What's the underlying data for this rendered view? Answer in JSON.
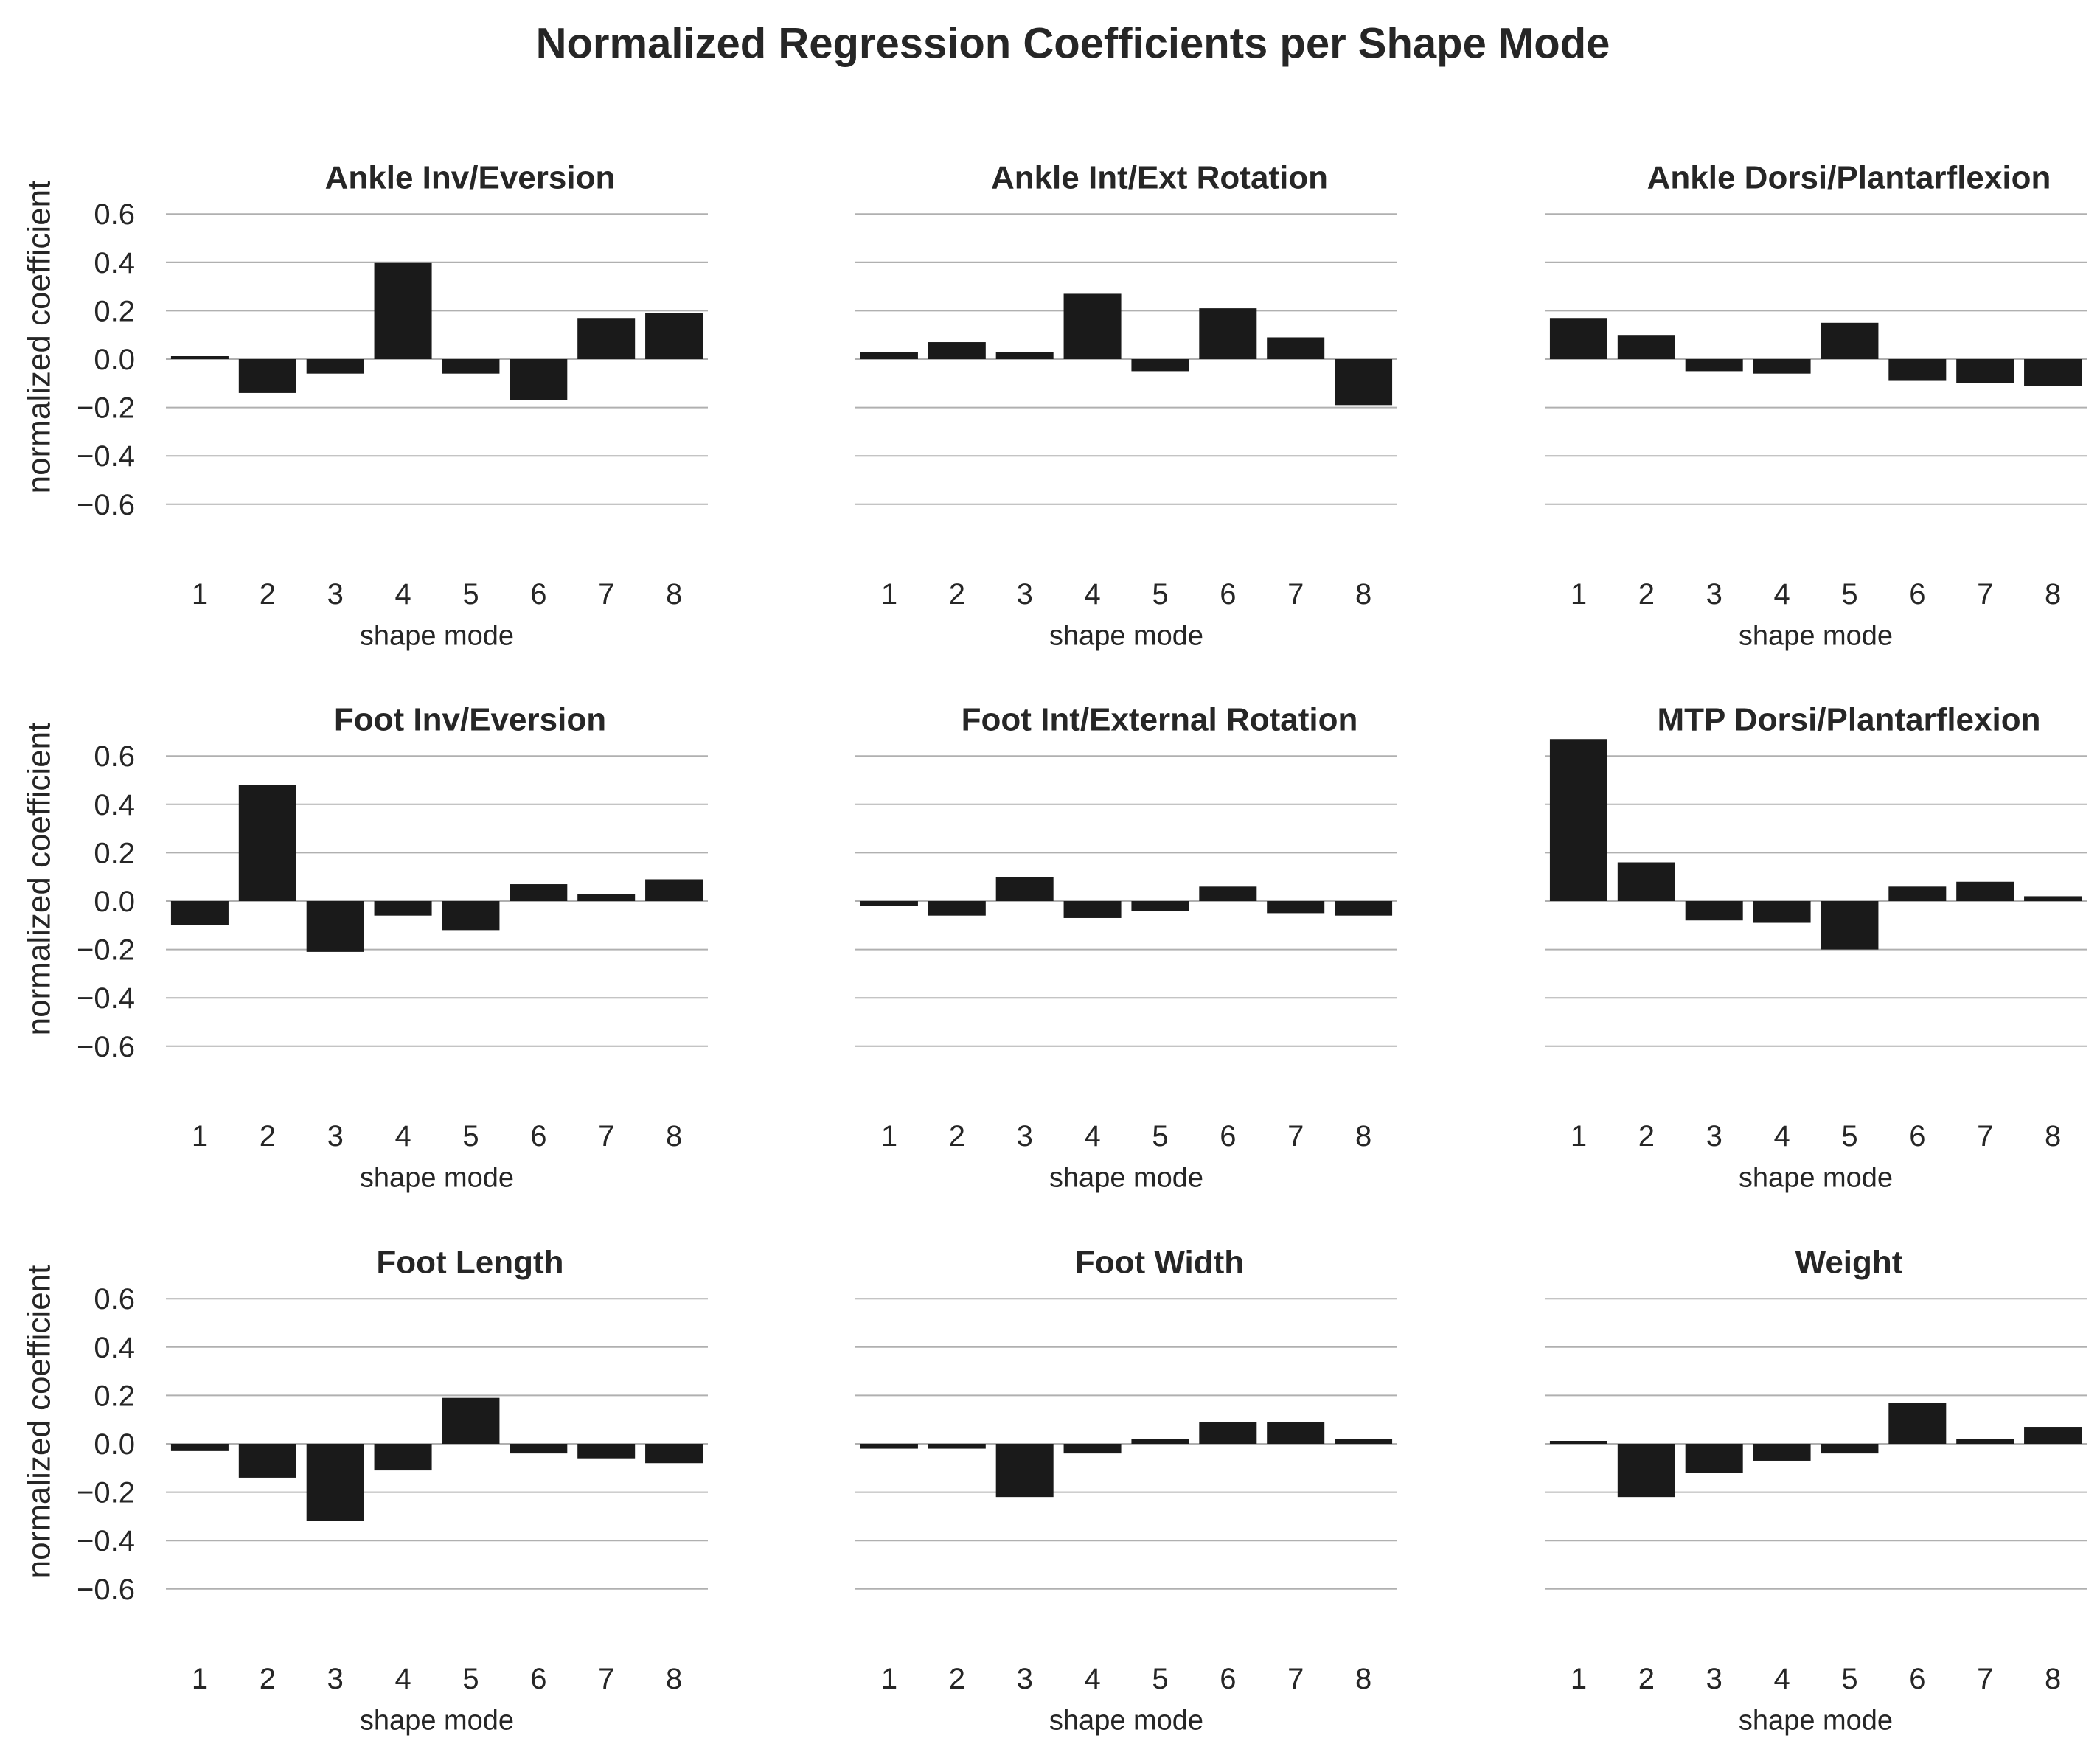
{
  "figure_title": "Normalized Regression Coefficients per Shape Mode",
  "chart_data": [
    {
      "type": "bar",
      "title": "Ankle Inv/Eversion",
      "xlabel": "shape mode",
      "ylabel": "normalized coefficient",
      "categories": [
        "1",
        "2",
        "3",
        "4",
        "5",
        "6",
        "7",
        "8"
      ],
      "values": [
        0.01,
        -0.14,
        -0.06,
        0.4,
        -0.06,
        -0.17,
        0.17,
        0.19
      ],
      "yticks": [
        "0.6",
        "0.4",
        "0.2",
        "0.0",
        "−0.2",
        "−0.4",
        "−0.6"
      ],
      "ylim": [
        -0.8,
        0.7
      ],
      "grid": "horizontal",
      "bar_color": "#1a1a1a"
    },
    {
      "type": "bar",
      "title": "Ankle Int/Ext Rotation",
      "xlabel": "shape mode",
      "ylabel": "",
      "categories": [
        "1",
        "2",
        "3",
        "4",
        "5",
        "6",
        "7",
        "8"
      ],
      "values": [
        0.03,
        0.07,
        0.03,
        0.27,
        -0.05,
        0.21,
        0.09,
        -0.19
      ],
      "yticks": [],
      "ylim": [
        -0.8,
        0.7
      ],
      "grid": "horizontal",
      "bar_color": "#1a1a1a"
    },
    {
      "type": "bar",
      "title": "Ankle Dorsi/Plantarflexion",
      "xlabel": "shape mode",
      "ylabel": "",
      "categories": [
        "1",
        "2",
        "3",
        "4",
        "5",
        "6",
        "7",
        "8"
      ],
      "values": [
        0.17,
        0.1,
        -0.05,
        -0.06,
        0.15,
        -0.09,
        -0.1,
        -0.11
      ],
      "yticks": [],
      "ylim": [
        -0.8,
        0.7
      ],
      "grid": "horizontal",
      "bar_color": "#1a1a1a"
    },
    {
      "type": "bar",
      "title": "Foot Inv/Eversion",
      "xlabel": "shape mode",
      "ylabel": "normalized coefficient",
      "categories": [
        "1",
        "2",
        "3",
        "4",
        "5",
        "6",
        "7",
        "8"
      ],
      "values": [
        -0.1,
        0.48,
        -0.21,
        -0.06,
        -0.12,
        0.07,
        0.03,
        0.09
      ],
      "yticks": [
        "0.6",
        "0.4",
        "0.2",
        "0.0",
        "−0.2",
        "−0.4",
        "−0.6"
      ],
      "ylim": [
        -0.8,
        0.7
      ],
      "grid": "horizontal",
      "bar_color": "#1a1a1a"
    },
    {
      "type": "bar",
      "title": "Foot Int/External Rotation",
      "xlabel": "shape mode",
      "ylabel": "",
      "categories": [
        "1",
        "2",
        "3",
        "4",
        "5",
        "6",
        "7",
        "8"
      ],
      "values": [
        -0.02,
        -0.06,
        0.1,
        -0.07,
        -0.04,
        0.06,
        -0.05,
        -0.06
      ],
      "yticks": [],
      "ylim": [
        -0.8,
        0.7
      ],
      "grid": "horizontal",
      "bar_color": "#1a1a1a"
    },
    {
      "type": "bar",
      "title": "MTP Dorsi/Plantarflexion",
      "xlabel": "shape mode",
      "ylabel": "",
      "categories": [
        "1",
        "2",
        "3",
        "4",
        "5",
        "6",
        "7",
        "8"
      ],
      "values": [
        0.67,
        0.16,
        -0.08,
        -0.09,
        -0.2,
        0.06,
        0.08,
        0.02
      ],
      "yticks": [],
      "ylim": [
        -0.8,
        0.7
      ],
      "grid": "horizontal",
      "bar_color": "#1a1a1a"
    },
    {
      "type": "bar",
      "title": "Foot Length",
      "xlabel": "shape mode",
      "ylabel": "normalized coefficient",
      "categories": [
        "1",
        "2",
        "3",
        "4",
        "5",
        "6",
        "7",
        "8"
      ],
      "values": [
        -0.03,
        -0.14,
        -0.32,
        -0.11,
        0.19,
        -0.04,
        -0.06,
        -0.08
      ],
      "yticks": [
        "0.6",
        "0.4",
        "0.2",
        "0.0",
        "−0.2",
        "−0.4",
        "−0.6"
      ],
      "ylim": [
        -0.8,
        0.7
      ],
      "grid": "horizontal",
      "bar_color": "#1a1a1a"
    },
    {
      "type": "bar",
      "title": "Foot Width",
      "xlabel": "shape mode",
      "ylabel": "",
      "categories": [
        "1",
        "2",
        "3",
        "4",
        "5",
        "6",
        "7",
        "8"
      ],
      "values": [
        -0.02,
        -0.02,
        -0.22,
        -0.04,
        0.02,
        0.09,
        0.09,
        0.02
      ],
      "yticks": [],
      "ylim": [
        -0.8,
        0.7
      ],
      "grid": "horizontal",
      "bar_color": "#1a1a1a"
    },
    {
      "type": "bar",
      "title": "Weight",
      "xlabel": "shape mode",
      "ylabel": "",
      "categories": [
        "1",
        "2",
        "3",
        "4",
        "5",
        "6",
        "7",
        "8"
      ],
      "values": [
        0.01,
        -0.22,
        -0.12,
        -0.07,
        -0.04,
        0.17,
        0.02,
        0.07
      ],
      "yticks": [],
      "ylim": [
        -0.8,
        0.7
      ],
      "grid": "horizontal",
      "bar_color": "#1a1a1a"
    }
  ]
}
